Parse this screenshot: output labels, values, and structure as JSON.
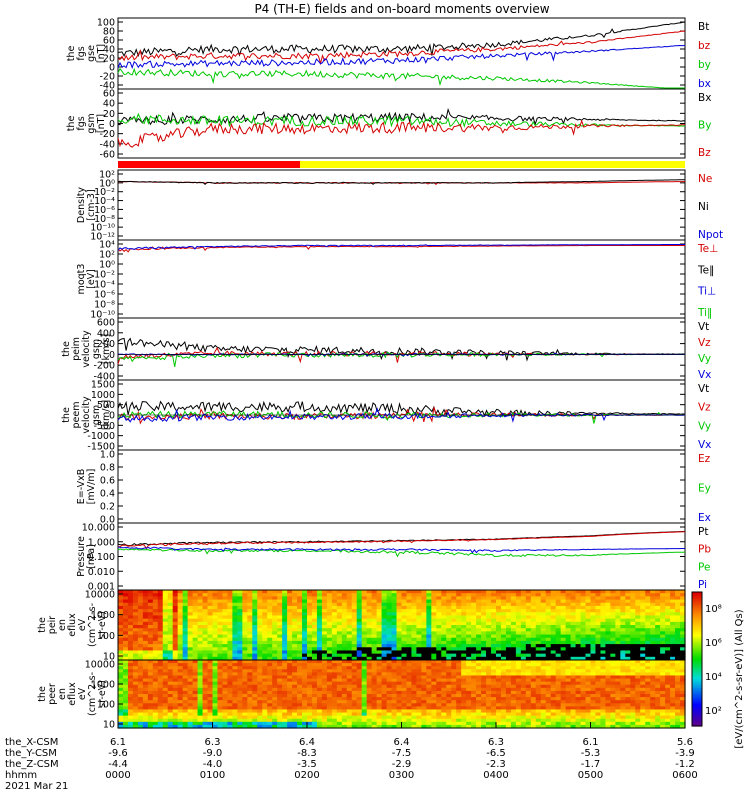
{
  "title": "P4 (TH-E) fields and on-board moments overview",
  "colors": {
    "black": "#000000",
    "red": "#d40000",
    "green": "#00c800",
    "blue": "#0000dc",
    "bar_red": "#ff0000",
    "bar_yellow": "#ffff00"
  },
  "panels": [
    {
      "id": "fgs-gse",
      "ylabel": [
        "the",
        "fgs",
        "gse",
        "[nT]"
      ],
      "ticks": [
        "100",
        "80",
        "60",
        "40",
        "20",
        "0",
        "-20",
        "-40"
      ],
      "legend": [
        {
          "label": "Bt",
          "color": "#000000"
        },
        {
          "label": "bz",
          "color": "#d40000"
        },
        {
          "label": "by",
          "color": "#00c800"
        },
        {
          "label": "bx",
          "color": "#0000dc"
        }
      ]
    },
    {
      "id": "fgs-gsm",
      "ylabel": [
        "the",
        "fgs",
        "gsm",
        "[nT]"
      ],
      "ticks": [
        "60",
        "40",
        "20",
        "0",
        "-20",
        "-40",
        "-60"
      ],
      "legend": [
        {
          "label": "Bx",
          "color": "#000000"
        },
        {
          "label": "By",
          "color": "#00c800"
        },
        {
          "label": "Bz",
          "color": "#d40000"
        }
      ]
    },
    {
      "id": "density",
      "ylabel": [
        "Density",
        "[cm-3]"
      ],
      "ticks": [
        "10²",
        "10⁰",
        "10⁻²",
        "10⁻⁴",
        "10⁻⁶",
        "10⁻⁸",
        "10⁻¹⁰",
        "10⁻¹²"
      ],
      "legend": [
        {
          "label": "Ne",
          "color": "#d40000"
        },
        {
          "label": "Ni",
          "color": "#000000"
        },
        {
          "label": "Npot",
          "color": "#0000dc"
        }
      ]
    },
    {
      "id": "temperature",
      "ylabel": [
        "moqt3",
        "[eV]"
      ],
      "ticks": [
        "10⁴",
        "10²",
        "10⁰",
        "10⁻²",
        "10⁻⁴",
        "10⁻⁶",
        "10⁻⁸",
        "10⁻¹⁰"
      ],
      "legend": [
        {
          "label": "Te⊥",
          "color": "#d40000"
        },
        {
          "label": "Te‖",
          "color": "#000000"
        },
        {
          "label": "Ti⊥",
          "color": "#0000dc"
        },
        {
          "label": "Ti‖",
          "color": "#00c800"
        }
      ]
    },
    {
      "id": "peim-velocity",
      "ylabel": [
        "the",
        "peim",
        "velocity",
        "gsm",
        "[km/s]"
      ],
      "ticks": [
        "600",
        "400",
        "200",
        "0",
        "-200",
        "-400"
      ],
      "legend": [
        {
          "label": "Vt",
          "color": "#000000"
        },
        {
          "label": "Vz",
          "color": "#d40000"
        },
        {
          "label": "Vy",
          "color": "#00c800"
        },
        {
          "label": "Vx",
          "color": "#0000dc"
        }
      ]
    },
    {
      "id": "peem-velocity",
      "ylabel": [
        "the",
        "peem",
        "velocity",
        "gsm",
        "[km/s]"
      ],
      "ticks": [
        "1500",
        "1000",
        "500",
        "0",
        "-500",
        "-1000",
        "-1500"
      ],
      "legend": [
        {
          "label": "Vt",
          "color": "#000000"
        },
        {
          "label": "Vz",
          "color": "#d40000"
        },
        {
          "label": "Vy",
          "color": "#00c800"
        },
        {
          "label": "Vx",
          "color": "#0000dc"
        }
      ]
    },
    {
      "id": "efield",
      "ylabel": [
        "E=-VxB",
        "[mV/m]"
      ],
      "ticks": [
        "1.0",
        "0.8",
        "0.6",
        "0.4",
        "0.2",
        "0.0"
      ],
      "legend": [
        {
          "label": "Ez",
          "color": "#d40000"
        },
        {
          "label": "Ey",
          "color": "#00c800"
        },
        {
          "label": "Ex",
          "color": "#0000dc"
        }
      ]
    },
    {
      "id": "pressure",
      "ylabel": [
        "Pressure",
        "[nPa]"
      ],
      "ticks": [
        "10.000",
        "1.000",
        "0.100",
        "0.010",
        "0.001"
      ],
      "legend": [
        {
          "label": "Pt",
          "color": "#000000"
        },
        {
          "label": "Pb",
          "color": "#d40000"
        },
        {
          "label": "Pe",
          "color": "#00c800"
        },
        {
          "label": "Pi",
          "color": "#0000dc"
        }
      ]
    },
    {
      "id": "peir-eflux",
      "ylabel": [
        "the",
        "peir",
        "en",
        "eflux",
        "eV",
        "(cm^2-s-",
        "sr-eV)"
      ],
      "ticks": [
        "10000",
        "1000",
        "100",
        "10"
      ]
    },
    {
      "id": "peer-eflux",
      "ylabel": [
        "the",
        "peer",
        "en",
        "eflux",
        "eV",
        "(cm^2-s-",
        "sr-eV)"
      ],
      "ticks": [
        "10000",
        "1000",
        "100",
        "10"
      ]
    }
  ],
  "colorbar": {
    "label": "[eV/(cm^2-s-sr-eV)] (All Qs)",
    "ticks": [
      "10⁸",
      "10⁶",
      "10⁴",
      "10²"
    ]
  },
  "xaxis": {
    "row_labels": [
      "the_X-CSM",
      "the_Y-CSM",
      "the_Z-CSM",
      "hhmm"
    ],
    "date": "2021 Mar 21",
    "columns": [
      [
        "6.1",
        "-9.6",
        "-4.4",
        "0000"
      ],
      [
        "6.3",
        "-9.0",
        "-4.0",
        "0100"
      ],
      [
        "6.4",
        "-8.3",
        "-3.5",
        "0200"
      ],
      [
        "6.4",
        "-7.5",
        "-2.9",
        "0300"
      ],
      [
        "6.3",
        "-6.5",
        "-2.3",
        "0400"
      ],
      [
        "6.1",
        "-5.3",
        "-1.7",
        "0500"
      ],
      [
        "5.6",
        "-3.9",
        "-1.2",
        "0600"
      ]
    ]
  },
  "chart_data": [
    {
      "type": "line",
      "title": "the fgs gse [nT]",
      "x": [
        "0000",
        "0100",
        "0200",
        "0300",
        "0400",
        "0500",
        "0600"
      ],
      "ylim": [
        -45,
        105
      ],
      "series": [
        {
          "name": "Bt",
          "values": [
            30,
            40,
            40,
            40,
            50,
            70,
            100
          ]
        },
        {
          "name": "bz",
          "values": [
            20,
            25,
            25,
            30,
            40,
            55,
            80
          ]
        },
        {
          "name": "by",
          "values": [
            -10,
            -15,
            -15,
            -20,
            -25,
            -35,
            -50
          ]
        },
        {
          "name": "bx",
          "values": [
            5,
            8,
            10,
            15,
            25,
            35,
            48
          ]
        }
      ]
    },
    {
      "type": "line",
      "title": "the fgs gsm [nT]",
      "x": [
        "0000",
        "0100",
        "0200",
        "0300",
        "0400",
        "0500",
        "0600"
      ],
      "ylim": [
        -70,
        65
      ],
      "series": [
        {
          "name": "Bx",
          "values": [
            5,
            8,
            10,
            12,
            10,
            8,
            5
          ]
        },
        {
          "name": "By",
          "values": [
            10,
            5,
            5,
            5,
            0,
            -3,
            -5
          ]
        },
        {
          "name": "Bz",
          "values": [
            -40,
            -10,
            -10,
            -8,
            -8,
            -5,
            -3
          ]
        }
      ]
    },
    {
      "type": "line",
      "title": "Density [cm-3]",
      "yscale": "log",
      "x": [
        "0000",
        "0100",
        "0200",
        "0300",
        "0400",
        "0500",
        "0600"
      ],
      "series": [
        {
          "name": "Ne",
          "values": [
            2,
            1,
            1,
            1,
            1,
            1,
            2
          ]
        },
        {
          "name": "Ni",
          "values": [
            2,
            1,
            1,
            1,
            1,
            2,
            5
          ]
        }
      ]
    },
    {
      "type": "line",
      "title": "moqt3 [eV]",
      "yscale": "log",
      "x": [
        "0000",
        "0100",
        "0200",
        "0300",
        "0400",
        "0500",
        "0600"
      ],
      "series": [
        {
          "name": "Te⊥",
          "values": [
            500,
            2000,
            3000,
            3000,
            4000,
            5000,
            5000
          ]
        },
        {
          "name": "Ti⊥",
          "values": [
            1000,
            3000,
            5000,
            5000,
            6000,
            7000,
            8000
          ]
        }
      ]
    },
    {
      "type": "line",
      "title": "the peim velocity gsm [km/s]",
      "x": [
        "0000",
        "0100",
        "0200",
        "0300",
        "0400",
        "0500",
        "0600"
      ],
      "ylim": [
        -400,
        600
      ],
      "series": [
        {
          "name": "Vt",
          "values": [
            250,
            100,
            80,
            60,
            30,
            10,
            5
          ]
        },
        {
          "name": "Vz",
          "values": [
            -50,
            20,
            10,
            20,
            5,
            0,
            0
          ]
        },
        {
          "name": "Vy",
          "values": [
            -100,
            -20,
            -10,
            -10,
            0,
            0,
            0
          ]
        },
        {
          "name": "Vx",
          "values": [
            0,
            0,
            0,
            0,
            0,
            0,
            0
          ]
        }
      ]
    },
    {
      "type": "line",
      "title": "the peem velocity gsm [km/s]",
      "x": [
        "0000",
        "0100",
        "0200",
        "0300",
        "0400",
        "0500",
        "0600"
      ],
      "ylim": [
        -1500,
        1500
      ],
      "series": [
        {
          "name": "Vt",
          "values": [
            400,
            400,
            400,
            300,
            100,
            80,
            50
          ]
        },
        {
          "name": "Vz",
          "values": [
            -100,
            -50,
            -80,
            0,
            0,
            0,
            0
          ]
        },
        {
          "name": "Vy",
          "values": [
            0,
            50,
            0,
            0,
            0,
            0,
            0
          ]
        },
        {
          "name": "Vx",
          "values": [
            -200,
            -100,
            -100,
            -50,
            0,
            0,
            0
          ]
        }
      ]
    },
    {
      "type": "line",
      "title": "E=-VxB [mV/m]",
      "x": [
        "0000",
        "0100",
        "0200",
        "0300",
        "0400",
        "0500",
        "0600"
      ],
      "ylim": [
        0,
        1
      ],
      "series": []
    },
    {
      "type": "line",
      "title": "Pressure [nPa]",
      "yscale": "log",
      "x": [
        "0000",
        "0100",
        "0200",
        "0300",
        "0400",
        "0500",
        "0600"
      ],
      "series": [
        {
          "name": "Pt",
          "values": [
            0.6,
            0.9,
            1,
            1.2,
            1.5,
            2.5,
            5
          ]
        },
        {
          "name": "Pb",
          "values": [
            0.5,
            0.8,
            0.9,
            1.1,
            1.4,
            2.3,
            4.8
          ]
        },
        {
          "name": "Pe",
          "values": [
            0.3,
            0.25,
            0.25,
            0.2,
            0.12,
            0.12,
            0.2
          ]
        },
        {
          "name": "Pi",
          "values": [
            0.4,
            0.3,
            0.3,
            0.3,
            0.25,
            0.3,
            0.35
          ]
        }
      ]
    },
    {
      "type": "heatmap",
      "title": "the peir en eflux",
      "yscale": "log",
      "ylim": [
        7,
        20000
      ],
      "x": [
        "0000",
        "0100",
        "0200",
        "0300",
        "0400",
        "0500",
        "0600"
      ]
    },
    {
      "type": "heatmap",
      "title": "the peer en eflux",
      "yscale": "log",
      "ylim": [
        7,
        20000
      ],
      "x": [
        "0000",
        "0100",
        "0200",
        "0300",
        "0400",
        "0500",
        "0600"
      ]
    }
  ]
}
